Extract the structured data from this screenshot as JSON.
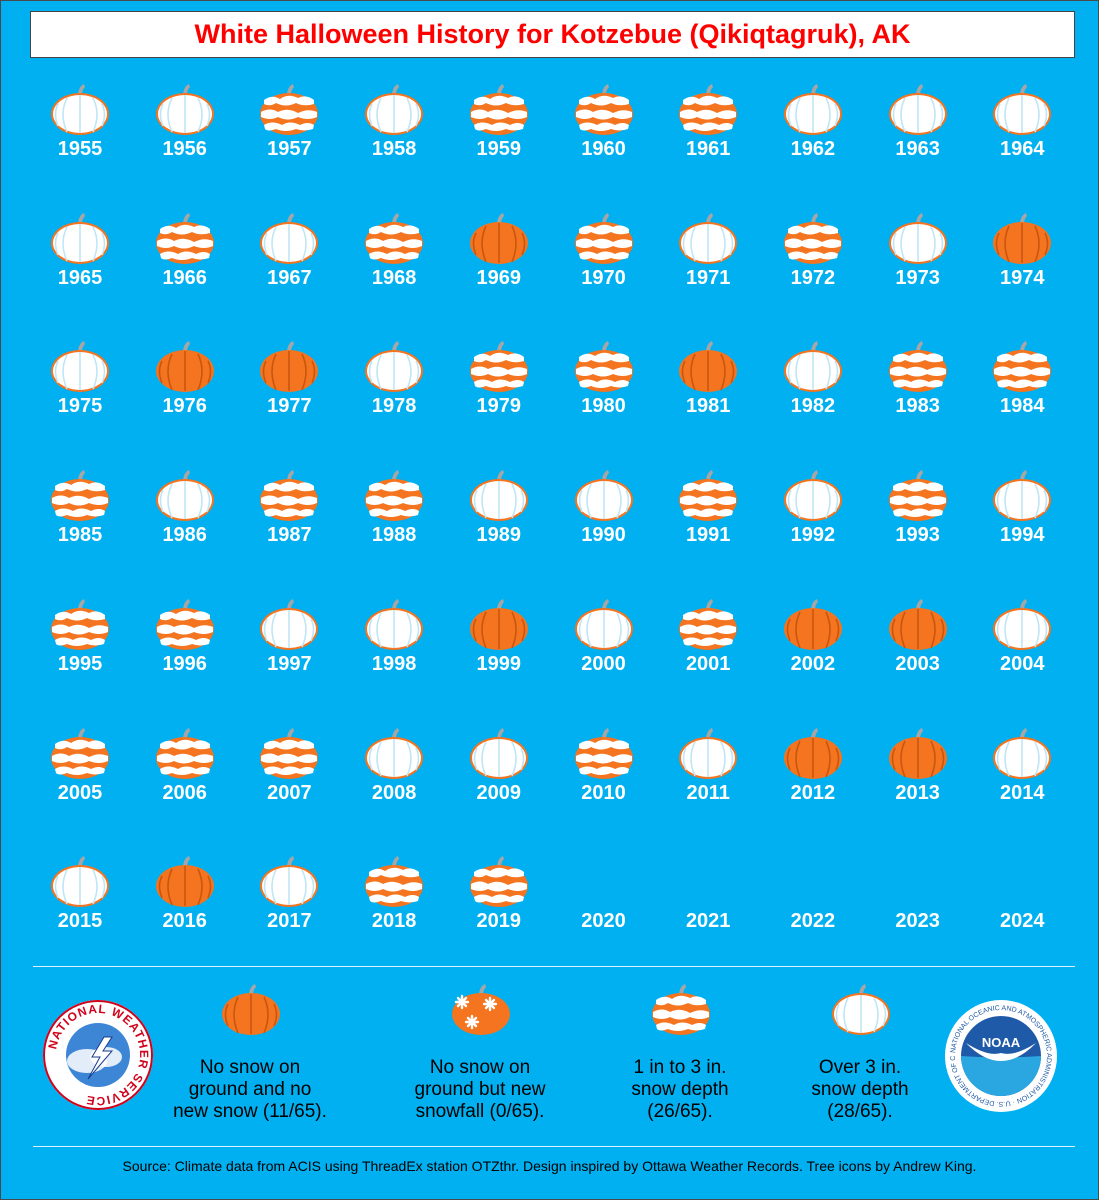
{
  "title": "White Halloween History for Kotzebue (Qikiqtagruk), AK",
  "colors": {
    "background": "#00b0f0",
    "title": "#ff0000",
    "pumpkin_orange": "#f4741f",
    "snow_white": "#ffffff",
    "pumpkin_stem": "#a6a6a6"
  },
  "years": [
    {
      "year": "1955",
      "category": "over3"
    },
    {
      "year": "1956",
      "category": "over3"
    },
    {
      "year": "1957",
      "category": "1to3"
    },
    {
      "year": "1958",
      "category": "over3"
    },
    {
      "year": "1959",
      "category": "1to3"
    },
    {
      "year": "1960",
      "category": "1to3"
    },
    {
      "year": "1961",
      "category": "1to3"
    },
    {
      "year": "1962",
      "category": "over3"
    },
    {
      "year": "1963",
      "category": "over3"
    },
    {
      "year": "1964",
      "category": "over3"
    },
    {
      "year": "1965",
      "category": "over3"
    },
    {
      "year": "1966",
      "category": "1to3"
    },
    {
      "year": "1967",
      "category": "over3"
    },
    {
      "year": "1968",
      "category": "1to3"
    },
    {
      "year": "1969",
      "category": "none"
    },
    {
      "year": "1970",
      "category": "1to3"
    },
    {
      "year": "1971",
      "category": "over3"
    },
    {
      "year": "1972",
      "category": "1to3"
    },
    {
      "year": "1973",
      "category": "over3"
    },
    {
      "year": "1974",
      "category": "none"
    },
    {
      "year": "1975",
      "category": "over3"
    },
    {
      "year": "1976",
      "category": "none"
    },
    {
      "year": "1977",
      "category": "none"
    },
    {
      "year": "1978",
      "category": "over3"
    },
    {
      "year": "1979",
      "category": "1to3"
    },
    {
      "year": "1980",
      "category": "1to3"
    },
    {
      "year": "1981",
      "category": "none"
    },
    {
      "year": "1982",
      "category": "over3"
    },
    {
      "year": "1983",
      "category": "1to3"
    },
    {
      "year": "1984",
      "category": "1to3"
    },
    {
      "year": "1985",
      "category": "1to3"
    },
    {
      "year": "1986",
      "category": "over3"
    },
    {
      "year": "1987",
      "category": "1to3"
    },
    {
      "year": "1988",
      "category": "1to3"
    },
    {
      "year": "1989",
      "category": "over3"
    },
    {
      "year": "1990",
      "category": "over3"
    },
    {
      "year": "1991",
      "category": "1to3"
    },
    {
      "year": "1992",
      "category": "over3"
    },
    {
      "year": "1993",
      "category": "1to3"
    },
    {
      "year": "1994",
      "category": "over3"
    },
    {
      "year": "1995",
      "category": "1to3"
    },
    {
      "year": "1996",
      "category": "1to3"
    },
    {
      "year": "1997",
      "category": "over3"
    },
    {
      "year": "1998",
      "category": "over3"
    },
    {
      "year": "1999",
      "category": "none"
    },
    {
      "year": "2000",
      "category": "over3"
    },
    {
      "year": "2001",
      "category": "1to3"
    },
    {
      "year": "2002",
      "category": "none"
    },
    {
      "year": "2003",
      "category": "none"
    },
    {
      "year": "2004",
      "category": "over3"
    },
    {
      "year": "2005",
      "category": "1to3"
    },
    {
      "year": "2006",
      "category": "1to3"
    },
    {
      "year": "2007",
      "category": "1to3"
    },
    {
      "year": "2008",
      "category": "over3"
    },
    {
      "year": "2009",
      "category": "over3"
    },
    {
      "year": "2010",
      "category": "1to3"
    },
    {
      "year": "2011",
      "category": "over3"
    },
    {
      "year": "2012",
      "category": "none"
    },
    {
      "year": "2013",
      "category": "none"
    },
    {
      "year": "2014",
      "category": "over3"
    },
    {
      "year": "2015",
      "category": "over3"
    },
    {
      "year": "2016",
      "category": "none"
    },
    {
      "year": "2017",
      "category": "over3"
    },
    {
      "year": "2018",
      "category": "1to3"
    },
    {
      "year": "2019",
      "category": "1to3"
    },
    {
      "year": "2020",
      "category": ""
    },
    {
      "year": "2021",
      "category": ""
    },
    {
      "year": "2022",
      "category": ""
    },
    {
      "year": "2023",
      "category": ""
    },
    {
      "year": "2024",
      "category": ""
    }
  ],
  "legend": [
    {
      "category": "none",
      "lines": [
        "No snow on",
        "ground and no",
        "new snow (11/65)."
      ]
    },
    {
      "category": "newsnow",
      "lines": [
        "No snow on",
        "ground but new",
        "snowfall (0/65)."
      ]
    },
    {
      "category": "1to3",
      "lines": [
        "1 in to 3 in.",
        "snow depth",
        "(26/65)."
      ]
    },
    {
      "category": "over3",
      "lines": [
        "Over 3 in.",
        "snow depth",
        "(28/65)."
      ]
    }
  ],
  "logos": {
    "nws": {
      "text": "NATIONAL WEATHER SERVICE"
    },
    "noaa": {
      "center": "NOAA",
      "ring": "NATIONAL OCEANIC AND ATMOSPHERIC ADMINISTRATION · U.S. DEPARTMENT OF COMMERCE"
    }
  },
  "source": "Source: Climate data from ACIS using ThreadEx station OTZthr. Design inspired by Ottawa Weather Records. Tree icons by Andrew King."
}
